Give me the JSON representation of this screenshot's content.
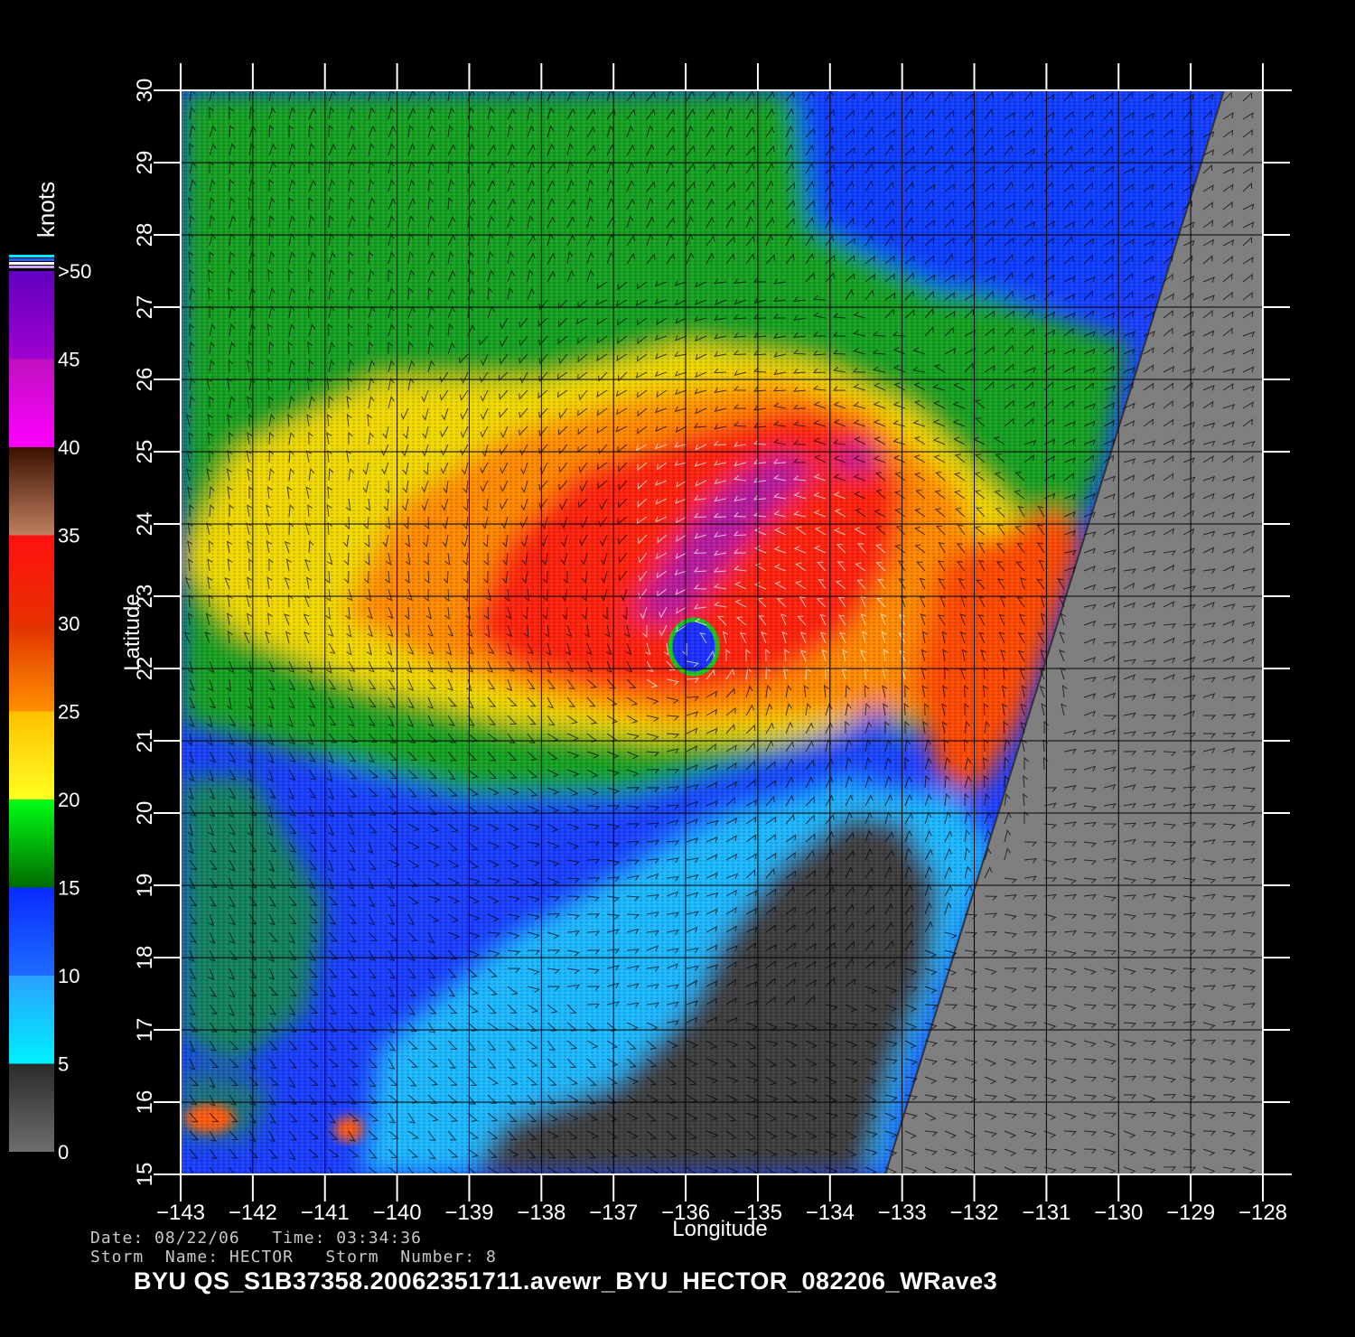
{
  "map": {
    "xlabel": "Longitude",
    "ylabel": "Latitude",
    "lon_ticks": [
      "−143",
      "−142",
      "−141",
      "−140",
      "−139",
      "−138",
      "−137",
      "−136",
      "−135",
      "−134",
      "−133",
      "−132",
      "−131",
      "−130",
      "−129",
      "−128"
    ],
    "lat_ticks": [
      "15",
      "16",
      "17",
      "18",
      "19",
      "20",
      "21",
      "22",
      "23",
      "24",
      "25",
      "26",
      "27",
      "28",
      "29",
      "30"
    ],
    "lon_range": [
      -143,
      -128
    ],
    "lat_range": [
      15,
      30
    ],
    "storm_center": {
      "lon": -135.9,
      "lat": 22.3
    },
    "land_color": "#7f7f7f"
  },
  "colorbar": {
    "title": "knots",
    "labels": [
      ">50",
      "45",
      "40",
      "35",
      "30",
      "25",
      "20",
      "15",
      "10",
      "5",
      "0"
    ],
    "segments": [
      {
        "from": 0,
        "to": 5,
        "color_start": "#6e6e6e",
        "color_end": "#2a2a2a"
      },
      {
        "from": 5,
        "to": 10,
        "color_start": "#00f0ff",
        "color_end": "#2aa0ff"
      },
      {
        "from": 10,
        "to": 15,
        "color_start": "#1d6cff",
        "color_end": "#0a2aff"
      },
      {
        "from": 15,
        "to": 20,
        "color_start": "#006a00",
        "color_end": "#00ff14"
      },
      {
        "from": 20,
        "to": 25,
        "color_start": "#ffff20",
        "color_end": "#ffc000"
      },
      {
        "from": 25,
        "to": 30,
        "color_start": "#ff9000",
        "color_end": "#e03000"
      },
      {
        "from": 30,
        "to": 35,
        "color_start": "#e83000",
        "color_end": "#ff1010"
      },
      {
        "from": 35,
        "to": 40,
        "color_start": "#c08060",
        "color_end": "#3a1000"
      },
      {
        "from": 40,
        "to": 45,
        "color_start": "#ff00ff",
        "color_end": "#c010c0"
      },
      {
        "from": 45,
        "to": 50,
        "color_start": "#a000d0",
        "color_end": "#6000c0"
      }
    ]
  },
  "info": {
    "line1": "Date: 08/22/06   Time: 03:34:36",
    "line2": "Storm  Name: HECTOR   Storm  Number: 8",
    "filename": "BYU  QS_S1B37358.20062351711.avewr_BYU_HECTOR_082206_WRave3"
  }
}
